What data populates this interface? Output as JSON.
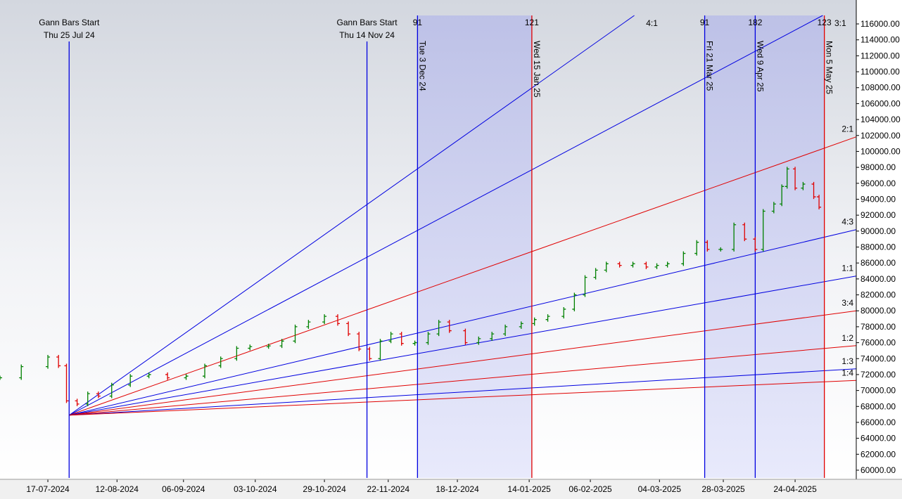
{
  "chart_data": {
    "type": "price_bars",
    "xlim": [
      "2024-06-29",
      "2025-05-17"
    ],
    "ylim": [
      59030,
      117060
    ],
    "up_color": "#008000",
    "down_color": "#e00000",
    "xticks": [
      {
        "value": "2024-07-17",
        "label": "17-07-2024"
      },
      {
        "value": "2024-08-12",
        "label": "12-08-2024"
      },
      {
        "value": "2024-09-06",
        "label": "06-09-2024"
      },
      {
        "value": "2024-10-03",
        "label": "03-10-2024"
      },
      {
        "value": "2024-10-29",
        "label": "29-10-2024"
      },
      {
        "value": "2024-11-22",
        "label": "22-11-2024"
      },
      {
        "value": "2024-12-18",
        "label": "18-12-2024"
      },
      {
        "value": "2025-01-14",
        "label": "14-01-2025"
      },
      {
        "value": "2025-02-06",
        "label": "06-02-2025"
      },
      {
        "value": "2025-03-04",
        "label": "04-03-2025"
      },
      {
        "value": "2025-03-28",
        "label": "28-03-2025"
      },
      {
        "value": "2025-04-24",
        "label": "24-04-2025"
      }
    ],
    "yticks": [
      {
        "value": 60000,
        "label": "60000.00"
      },
      {
        "value": 62000,
        "label": "62000.00"
      },
      {
        "value": 64000,
        "label": "64000.00"
      },
      {
        "value": 66000,
        "label": "66000.00"
      },
      {
        "value": 68000,
        "label": "68000.00"
      },
      {
        "value": 70000,
        "label": "70000.00"
      },
      {
        "value": 72000,
        "label": "72000.00"
      },
      {
        "value": 74000,
        "label": "74000.00"
      },
      {
        "value": 76000,
        "label": "76000.00"
      },
      {
        "value": 78000,
        "label": "78000.00"
      },
      {
        "value": 80000,
        "label": "80000.00"
      },
      {
        "value": 82000,
        "label": "82000.00"
      },
      {
        "value": 84000,
        "label": "84000.00"
      },
      {
        "value": 86000,
        "label": "86000.00"
      },
      {
        "value": 88000,
        "label": "88000.00"
      },
      {
        "value": 90000,
        "label": "90000.00"
      },
      {
        "value": 92000,
        "label": "92000.00"
      },
      {
        "value": 94000,
        "label": "94000.00"
      },
      {
        "value": 96000,
        "label": "96000.00"
      },
      {
        "value": 98000,
        "label": "98000.00"
      },
      {
        "value": 100000,
        "label": "100000.00"
      },
      {
        "value": 102000,
        "label": "102000.00"
      },
      {
        "value": 104000,
        "label": "104000.00"
      },
      {
        "value": 106000,
        "label": "106000.00"
      },
      {
        "value": 108000,
        "label": "108000.00"
      },
      {
        "value": 110000,
        "label": "110000.00"
      },
      {
        "value": 112000,
        "label": "112000.00"
      },
      {
        "value": 114000,
        "label": "114000.00"
      },
      {
        "value": 116000,
        "label": "116000.00"
      }
    ],
    "x": [
      "2024-06-29",
      "2024-07-07",
      "2024-07-17",
      "2024-07-21",
      "2024-07-24",
      "2024-07-28",
      "2024-08-01",
      "2024-08-05",
      "2024-08-10",
      "2024-08-17",
      "2024-08-24",
      "2024-08-31",
      "2024-09-07",
      "2024-09-14",
      "2024-09-20",
      "2024-09-26",
      "2024-10-01",
      "2024-10-08",
      "2024-10-13",
      "2024-10-18",
      "2024-10-23",
      "2024-10-29",
      "2024-11-03",
      "2024-11-07",
      "2024-11-11",
      "2024-11-15",
      "2024-11-19",
      "2024-11-23",
      "2024-11-27",
      "2024-12-02",
      "2024-12-07",
      "2024-12-11",
      "2024-12-15",
      "2024-12-21",
      "2024-12-26",
      "2024-12-31",
      "2025-01-05",
      "2025-01-11",
      "2025-01-16",
      "2025-01-21",
      "2025-01-27",
      "2025-01-31",
      "2025-02-04",
      "2025-02-08",
      "2025-02-12",
      "2025-02-17",
      "2025-02-22",
      "2025-02-27",
      "2025-03-03",
      "2025-03-07",
      "2025-03-13",
      "2025-03-18",
      "2025-03-22",
      "2025-03-27",
      "2025-04-01",
      "2025-04-05",
      "2025-04-09",
      "2025-04-12",
      "2025-04-16",
      "2025-04-19",
      "2025-04-21",
      "2025-04-24",
      "2025-04-27",
      "2025-05-01",
      "2025-05-03"
    ],
    "values": [
      71600,
      73000,
      74200,
      73100,
      68700,
      68300,
      69600,
      69300,
      70700,
      71800,
      72000,
      71600,
      71800,
      73100,
      74000,
      75300,
      75500,
      75600,
      76200,
      78000,
      78600,
      79300,
      78400,
      77100,
      75200,
      74000,
      76200,
      77100,
      75900,
      76000,
      77100,
      78600,
      77500,
      76000,
      76500,
      77100,
      78000,
      78400,
      78900,
      79300,
      80200,
      82000,
      84200,
      85100,
      85900,
      85700,
      85900,
      85500,
      85700,
      85900,
      87200,
      88600,
      87700,
      87700,
      90800,
      89000,
      87700,
      92500,
      93400,
      95600,
      97800,
      95400,
      95900,
      94300,
      93000
    ],
    "events": [
      {
        "date": "2024-07-25",
        "title": "Gann Bars Start",
        "label": "Thu 25 Jul 24",
        "color": "#0000e0"
      },
      {
        "date": "2024-11-14",
        "title": "Gann Bars Start",
        "label": "Thu 14 Nov 24",
        "color": "#0000e0"
      },
      {
        "date": "2024-12-03",
        "label": "Tue 3 Dec 24",
        "count": 91,
        "color": "#0000e0"
      },
      {
        "date": "2025-01-15",
        "label": "Wed 15 Jan 25",
        "count": 121,
        "color": "#e00000"
      },
      {
        "date": "2025-03-21",
        "label": "Fri 21 Mar 25",
        "count": 91,
        "color": "#0000e0"
      },
      {
        "date": "2025-04-09",
        "label": "Wed 9 Apr 25",
        "count": 182,
        "color": "#0000e0"
      },
      {
        "date": "2025-05-05",
        "label": "Mon 5 May 25",
        "count": 123,
        "color": "#e00000"
      }
    ],
    "shaded_ranges": [
      [
        "2024-12-03",
        "2025-01-15"
      ],
      [
        "2025-03-21",
        "2025-05-05"
      ]
    ],
    "fan": {
      "origin_date": "2024-07-25",
      "origin_price": 66900,
      "points_per_day": 59,
      "lines": [
        {
          "label": "4:1",
          "color": "#0000e0"
        },
        {
          "label": "3:1",
          "color": "#0000e0"
        },
        {
          "label": "2:1",
          "color": "#e00000"
        },
        {
          "label": "4:3",
          "color": "#0000e0"
        },
        {
          "label": "1:1",
          "color": "#0000e0"
        },
        {
          "label": "3:4",
          "color": "#e00000"
        },
        {
          "label": "1:2",
          "color": "#e00000"
        },
        {
          "label": "1:3",
          "color": "#0000e0"
        },
        {
          "label": "1:4",
          "color": "#e00000"
        }
      ]
    }
  }
}
